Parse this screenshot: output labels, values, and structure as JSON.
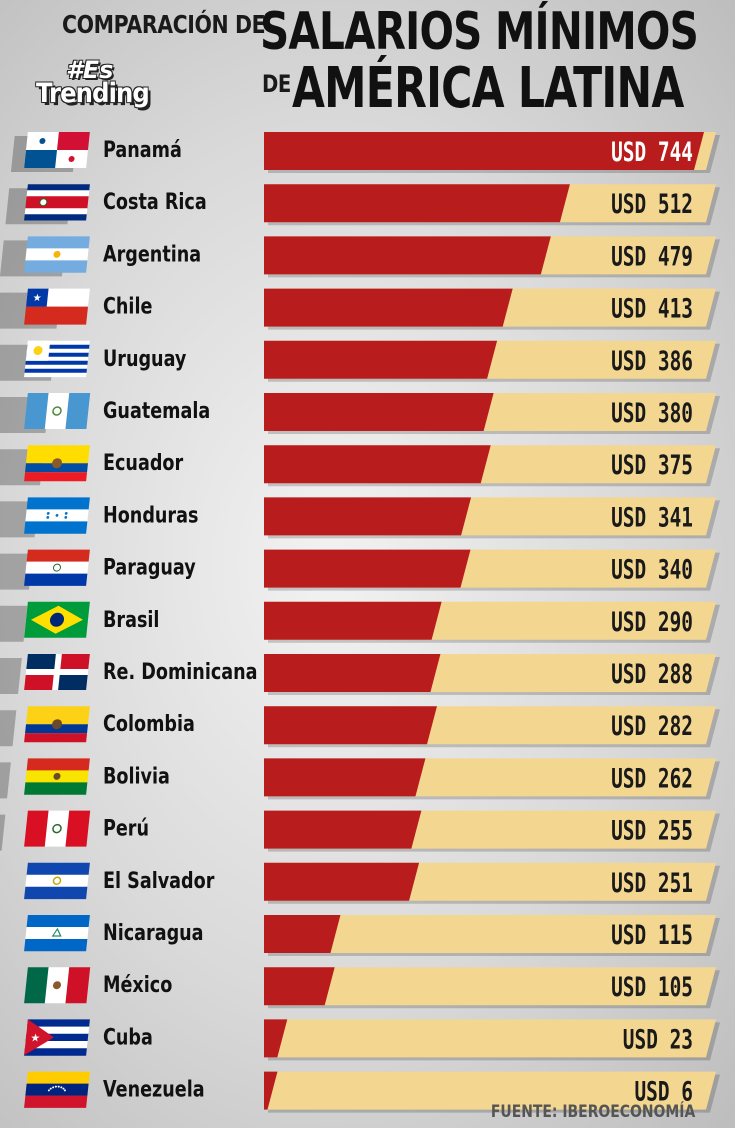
{
  "header": {
    "line1": "COMPARACIÓN DE",
    "main1": "SALARIOS MÍNIMOS",
    "line2_de": "DE",
    "main2": "AMÉRICA LATINA",
    "brand_tag": "#Es",
    "brand_word": "Trending"
  },
  "source": "FUENTE: IBEROECONOMÍA",
  "colors": {
    "bar_fill": "#b81c1c",
    "bar_track": "#f3d690",
    "value_text_dark": "#1a1a1a",
    "value_text_light": "#ffffff"
  },
  "chart_data": {
    "type": "bar",
    "orientation": "horizontal",
    "title": "COMPARACIÓN DE SALARIOS MÍNIMOS DE AMÉRICA LATINA",
    "unit_prefix": "USD",
    "xlim": [
      0,
      744
    ],
    "categories": [
      "Panamá",
      "Costa Rica",
      "Argentina",
      "Chile",
      "Uruguay",
      "Guatemala",
      "Ecuador",
      "Honduras",
      "Paraguay",
      "Brasil",
      "Re. Dominicana",
      "Colombia",
      "Bolivia",
      "Perú",
      "El Salvador",
      "Nicaragua",
      "México",
      "Cuba",
      "Venezuela"
    ],
    "values": [
      744,
      512,
      479,
      413,
      386,
      380,
      375,
      341,
      340,
      290,
      288,
      282,
      262,
      255,
      251,
      115,
      105,
      23,
      6
    ],
    "labels": [
      "USD 744",
      "USD 512",
      "USD 479",
      "USD 413",
      "USD 386",
      "USD 380",
      "USD 375",
      "USD 341",
      "USD 340",
      "USD 290",
      "USD 288",
      "USD 282",
      "USD 262",
      "USD 255",
      "USD 251",
      "USD 115",
      "USD 105",
      "USD  23",
      "USD    6"
    ],
    "flag_icons": [
      "panama-flag-icon",
      "costa-rica-flag-icon",
      "argentina-flag-icon",
      "chile-flag-icon",
      "uruguay-flag-icon",
      "guatemala-flag-icon",
      "ecuador-flag-icon",
      "honduras-flag-icon",
      "paraguay-flag-icon",
      "brasil-flag-icon",
      "dominican-republic-flag-icon",
      "colombia-flag-icon",
      "bolivia-flag-icon",
      "peru-flag-icon",
      "el-salvador-flag-icon",
      "nicaragua-flag-icon",
      "mexico-flag-icon",
      "cuba-flag-icon",
      "venezuela-flag-icon"
    ]
  }
}
